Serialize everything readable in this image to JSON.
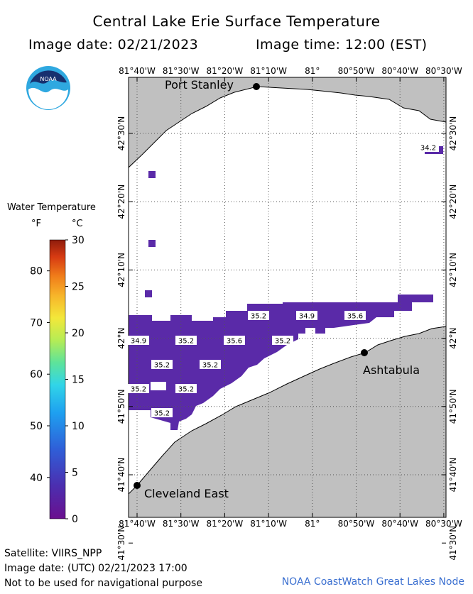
{
  "header": {
    "title": "Central Lake Erie Surface Temperature",
    "image_date_label": "Image date: 02/21/2023",
    "image_time_label": "Image time: 12:00 (EST)"
  },
  "logo": {
    "text": "NOAA",
    "icon": "noaa-logo"
  },
  "legend": {
    "title": "Water Temperature",
    "unit_f": "°F",
    "unit_c": "°C",
    "f_ticks": [
      "80",
      "70",
      "60",
      "50",
      "40"
    ],
    "c_ticks": [
      "30",
      "25",
      "20",
      "15",
      "10",
      "5",
      "0"
    ],
    "colors": [
      "#6a0f8e",
      "#4b2fb0",
      "#2f5fd8",
      "#1ea0f0",
      "#31d5e8",
      "#5ee39a",
      "#b5ec55",
      "#f3e83a",
      "#f7b52a",
      "#f07d1a",
      "#d63a12",
      "#8f1c0c"
    ]
  },
  "map": {
    "lon_labels": [
      "81°40'W",
      "81°30'W",
      "81°20'W",
      "81°10'W",
      "81°",
      "80°50'W",
      "80°40'W",
      "80°30'W"
    ],
    "lat_labels": [
      "42°30'N",
      "42°20'N",
      "42°10'N",
      "42°N",
      "41°50'N",
      "41°40'N",
      "41°30'N"
    ],
    "cities": [
      {
        "name": "Port Stanley"
      },
      {
        "name": "Ashtabula"
      },
      {
        "name": "Cleveland East"
      }
    ],
    "temp_labels": [
      "34.2",
      "35.2",
      "34.9",
      "35.6",
      "34.9",
      "35.2",
      "35.6",
      "35.2",
      "35.2",
      "35.2",
      "35.2",
      "35.2",
      "35.2"
    ],
    "colors": {
      "land": "#c0c0c0",
      "water": "#ffffff",
      "data": "#5a2aa8",
      "grid": "#555555"
    }
  },
  "footer": {
    "satellite": "Satellite: VIIRS_NPP",
    "utc_date": "Image date: (UTC) 02/21/2023  17:00",
    "disclaimer": "Not to be used for navigational purpose",
    "credit": "NOAA CoastWatch Great Lakes Node"
  }
}
